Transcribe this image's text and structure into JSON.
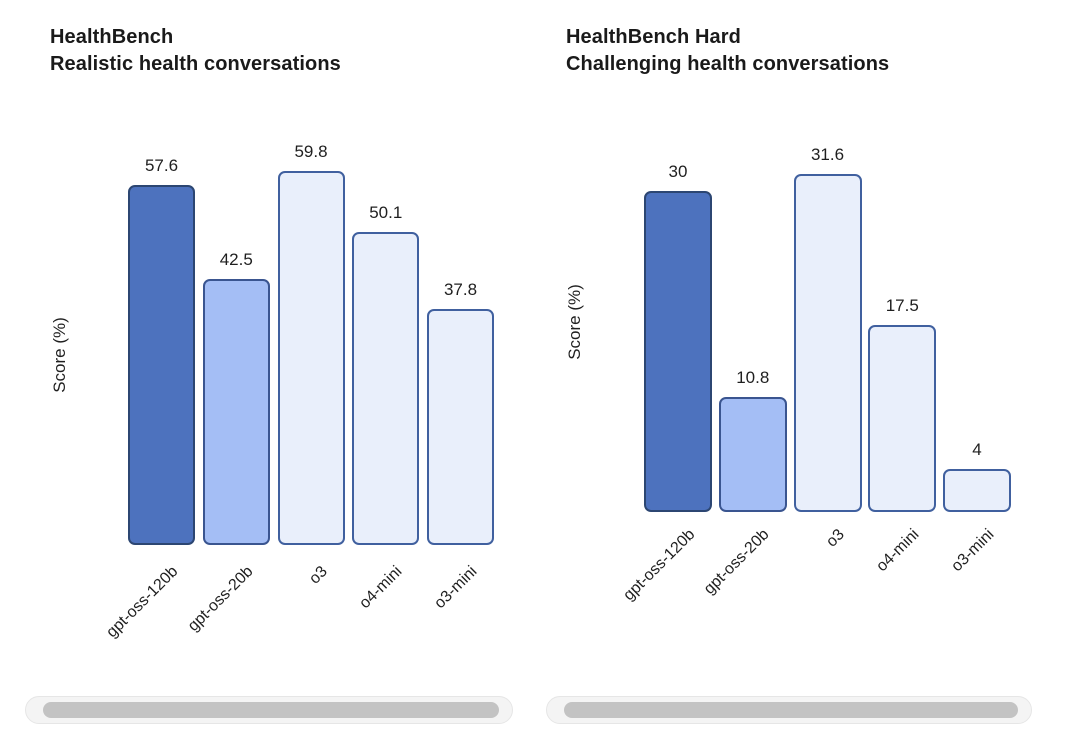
{
  "page": {
    "background": "#ffffff"
  },
  "chart_data": [
    {
      "type": "bar",
      "title": "HealthBench",
      "subtitle": "Realistic health conversations",
      "ylabel": "Score (%)",
      "categories": [
        "gpt-oss-120b",
        "gpt-oss-20b",
        "o3",
        "o4-mini",
        "o3-mini"
      ],
      "values": [
        57.6,
        42.5,
        59.8,
        50.1,
        37.8
      ],
      "value_labels": [
        "57.6",
        "42.5",
        "59.8",
        "50.1",
        "37.8"
      ],
      "ylim": [
        0,
        60
      ],
      "grid": false,
      "legend": "none",
      "tick_rotation_deg": 45,
      "bar_fills": [
        "#4D72BE",
        "#A4BEF5",
        "#E9EFFB",
        "#E9EFFB",
        "#E9EFFB"
      ],
      "bar_borders": [
        "#2C4672",
        "#3A5590",
        "#40609F",
        "#40609F",
        "#40609F"
      ]
    },
    {
      "type": "bar",
      "title": "HealthBench Hard",
      "subtitle": "Challenging health conversations",
      "ylabel": "Score (%)",
      "categories": [
        "gpt-oss-120b",
        "gpt-oss-20b",
        "o3",
        "o4-mini",
        "o3-mini"
      ],
      "values": [
        30,
        10.8,
        31.6,
        17.5,
        4
      ],
      "value_labels": [
        "30",
        "10.8",
        "31.6",
        "17.5",
        "4"
      ],
      "ylim": [
        0,
        32
      ],
      "grid": false,
      "legend": "none",
      "tick_rotation_deg": 45,
      "bar_fills": [
        "#4D72BE",
        "#A4BEF5",
        "#E9EFFB",
        "#E9EFFB",
        "#E9EFFB"
      ],
      "bar_borders": [
        "#2C4672",
        "#3A5590",
        "#40609F",
        "#40609F",
        "#40609F"
      ]
    }
  ],
  "colors": {
    "title_text": "#1A1A1A",
    "axis_text": "#1F1F1F",
    "value_text": "#1F1F1F",
    "scrollbar_track": "#F4F4F4",
    "scrollbar_track_border": "#E6E6E6",
    "scrollbar_thumb": "#C3C3C3"
  }
}
